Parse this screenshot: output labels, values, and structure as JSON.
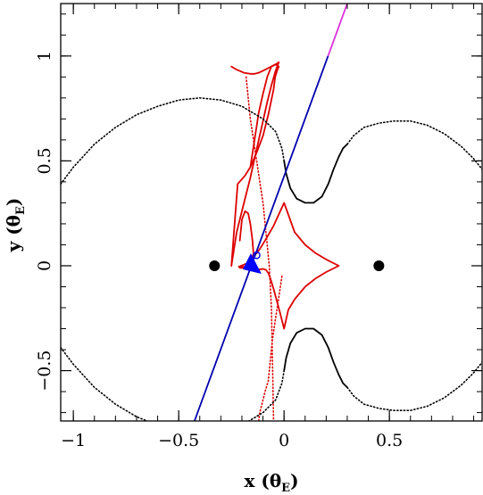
{
  "chart_data": {
    "type": "line",
    "title": "",
    "xlabel": "x (θE)",
    "ylabel": "y (θE)",
    "xlabel_main": "x",
    "xlabel_theta": "θ",
    "xlabel_sub": "E",
    "ylabel_main": "y",
    "ylabel_theta": "θ",
    "ylabel_sub": "E",
    "xlim": [
      -1.06,
      0.94
    ],
    "ylim": [
      -0.74,
      1.25
    ],
    "xticks": [
      -1,
      -0.5,
      0,
      0.5
    ],
    "xtick_labels": [
      "−1",
      "−0.5",
      "0",
      "0.5"
    ],
    "yticks": [
      -0.5,
      0,
      0.5,
      1
    ],
    "ytick_labels": [
      "−0.5",
      "0",
      "0.5",
      "1"
    ],
    "grid": false,
    "colors": {
      "caustic": "#dd0000",
      "critical_curve": "#000000",
      "trajectory": "#0000b0",
      "trajectory_tail": "#dd33dd",
      "source": "#0000ff",
      "lens": "#000000"
    },
    "lenses": [
      {
        "x": -0.33,
        "y": 0.0
      },
      {
        "x": 0.45,
        "y": 0.0
      }
    ],
    "trajectory": {
      "points": [
        [
          -0.425,
          -0.74
        ],
        [
          0.3,
          1.25
        ]
      ],
      "tail_from_y": 1.0
    },
    "source": {
      "x": -0.145,
      "y": 0.0
    },
    "source_marker": {
      "x": -0.13,
      "y": 0.05
    },
    "series": [
      {
        "kind": "caustic",
        "style": "solid",
        "x": [
          -0.21,
          -0.19,
          -0.17,
          -0.155,
          -0.145,
          -0.13,
          -0.115,
          -0.09,
          -0.05,
          0.0,
          0.05,
          0.1,
          0.15,
          0.2,
          0.26,
          0.2,
          0.15,
          0.1,
          0.05,
          0.02,
          0.0,
          -0.02,
          -0.05,
          -0.065,
          -0.075,
          -0.085,
          -0.1,
          -0.12,
          -0.145,
          -0.18,
          -0.215,
          -0.155,
          -0.145,
          -0.15,
          -0.16,
          -0.17,
          -0.185,
          -0.2,
          -0.21
        ],
        "y": [
          -0.01,
          -0.01,
          0.0,
          0.02,
          0.05,
          0.06,
          0.08,
          0.12,
          0.19,
          0.3,
          0.16,
          0.1,
          0.06,
          0.03,
          0.0,
          -0.03,
          -0.06,
          -0.1,
          -0.16,
          -0.21,
          -0.3,
          -0.22,
          -0.11,
          -0.06,
          -0.035,
          -0.02,
          -0.015,
          -0.018,
          -0.01,
          -0.005,
          -0.005,
          0.02,
          0.06,
          0.12,
          0.2,
          0.25,
          0.26,
          0.22,
          0.12
        ]
      },
      {
        "kind": "caustic",
        "style": "solid",
        "x": [
          -0.05,
          -0.075,
          -0.1,
          -0.13,
          -0.16,
          -0.185,
          -0.22,
          -0.25,
          -0.22,
          -0.185,
          -0.16,
          -0.14,
          -0.12,
          -0.1,
          -0.08,
          -0.06,
          -0.04,
          -0.025,
          -0.025,
          -0.025,
          -0.033,
          -0.042,
          -0.05
        ],
        "y": [
          0.84,
          0.72,
          0.62,
          0.54,
          0.47,
          0.43,
          0.39,
          0.0,
          0.39,
          0.43,
          0.47,
          0.6,
          0.73,
          0.82,
          0.9,
          0.95,
          0.96,
          0.95,
          0.95,
          0.95,
          0.93,
          0.9,
          0.84
        ]
      },
      {
        "kind": "caustic",
        "style": "solid",
        "x": [
          -0.25,
          -0.225,
          -0.19,
          -0.16,
          -0.14,
          -0.12,
          -0.1,
          -0.08,
          -0.06,
          -0.04,
          -0.025,
          -0.04,
          -0.06,
          -0.08,
          -0.1,
          -0.12,
          -0.14,
          -0.16,
          -0.19,
          -0.225,
          -0.25
        ],
        "y": [
          0.95,
          0.935,
          0.92,
          0.915,
          0.915,
          0.92,
          0.93,
          0.94,
          0.95,
          0.96,
          0.97,
          0.93,
          0.86,
          0.78,
          0.69,
          0.6,
          0.51,
          0.42,
          0.3,
          0.16,
          0.0
        ]
      },
      {
        "kind": "caustic",
        "style": "dotted",
        "x": [
          -0.18,
          -0.17,
          -0.16,
          -0.145,
          -0.13,
          -0.115,
          -0.1,
          -0.09,
          -0.08,
          -0.07,
          -0.06,
          -0.055,
          -0.05
        ],
        "y": [
          0.9,
          0.8,
          0.7,
          0.6,
          0.5,
          0.4,
          0.3,
          0.2,
          0.1,
          0.0,
          -0.2,
          -0.45,
          -0.74
        ]
      },
      {
        "kind": "caustic",
        "style": "dotted",
        "x": [
          -0.01,
          -0.025,
          -0.04,
          -0.055,
          -0.065,
          -0.075,
          -0.09,
          -0.105,
          -0.115,
          -0.12
        ],
        "y": [
          -0.05,
          -0.15,
          -0.25,
          -0.35,
          -0.45,
          -0.55,
          -0.6,
          -0.66,
          -0.7,
          -0.74
        ]
      },
      {
        "kind": "critical",
        "style": "dotted",
        "x": [
          -1.06,
          -1.0,
          -0.9,
          -0.8,
          -0.7,
          -0.6,
          -0.5,
          -0.4,
          -0.3,
          -0.2,
          -0.1,
          -0.04,
          -0.01,
          0.0
        ],
        "y": [
          0.39,
          0.47,
          0.58,
          0.66,
          0.72,
          0.76,
          0.79,
          0.8,
          0.79,
          0.76,
          0.7,
          0.64,
          0.56,
          0.5
        ]
      },
      {
        "kind": "critical",
        "style": "solid",
        "x": [
          0.0,
          0.01,
          0.03,
          0.06,
          0.1,
          0.14,
          0.18,
          0.21,
          0.235,
          0.26,
          0.28,
          0.3
        ],
        "y": [
          0.5,
          0.44,
          0.37,
          0.32,
          0.3,
          0.3,
          0.33,
          0.39,
          0.46,
          0.52,
          0.56,
          0.58
        ]
      },
      {
        "kind": "critical",
        "style": "dotted",
        "x": [
          0.3,
          0.33,
          0.38,
          0.45,
          0.52,
          0.6,
          0.68,
          0.76,
          0.84,
          0.9,
          0.94
        ],
        "y": [
          0.58,
          0.62,
          0.66,
          0.68,
          0.69,
          0.69,
          0.67,
          0.63,
          0.57,
          0.51,
          0.46
        ]
      },
      {
        "kind": "critical",
        "style": "dotted",
        "x": [
          -1.06,
          -1.0,
          -0.9,
          -0.8,
          -0.7,
          -0.6,
          -0.5,
          -0.4,
          -0.3,
          -0.2,
          -0.1,
          -0.04,
          -0.01,
          0.0
        ],
        "y": [
          -0.39,
          -0.47,
          -0.58,
          -0.66,
          -0.72,
          -0.76,
          -0.79,
          -0.8,
          -0.79,
          -0.76,
          -0.7,
          -0.64,
          -0.56,
          -0.5
        ]
      },
      {
        "kind": "critical",
        "style": "solid",
        "x": [
          0.0,
          0.01,
          0.03,
          0.06,
          0.1,
          0.14,
          0.18,
          0.21,
          0.235,
          0.26,
          0.28,
          0.3
        ],
        "y": [
          -0.5,
          -0.44,
          -0.37,
          -0.32,
          -0.3,
          -0.3,
          -0.33,
          -0.39,
          -0.46,
          -0.52,
          -0.56,
          -0.58
        ]
      },
      {
        "kind": "critical",
        "style": "dotted",
        "x": [
          0.3,
          0.33,
          0.38,
          0.45,
          0.52,
          0.6,
          0.68,
          0.76,
          0.84,
          0.9,
          0.94
        ],
        "y": [
          -0.58,
          -0.62,
          -0.66,
          -0.68,
          -0.69,
          -0.69,
          -0.67,
          -0.63,
          -0.57,
          -0.51,
          -0.46
        ]
      }
    ]
  }
}
